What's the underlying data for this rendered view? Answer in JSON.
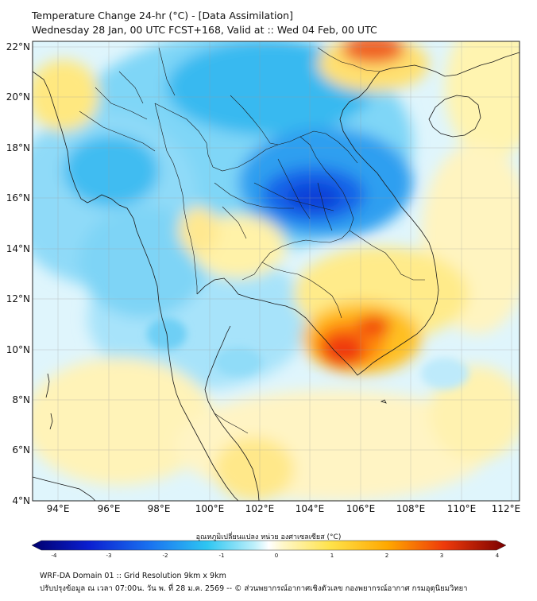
{
  "header": {
    "title": "Temperature Change 24-hr (°C) - [Data Assimilation]",
    "subtitle": "Wednesday 28 Jan, 00 UTC FCST+168, Valid at :: Wed 04 Feb, 00 UTC"
  },
  "map": {
    "lat_labels": [
      "22°N",
      "20°N",
      "18°N",
      "16°N",
      "14°N",
      "12°N",
      "10°N",
      "8°N",
      "6°N",
      "4°N"
    ],
    "lon_labels": [
      "94°E",
      "96°E",
      "98°E",
      "100°E",
      "102°E",
      "104°E",
      "106°E",
      "108°E",
      "110°E",
      "112°E"
    ],
    "lat_range": [
      4,
      22.3
    ],
    "lon_range": [
      93,
      112.3
    ]
  },
  "colorbar": {
    "label": "อุณหภูมิเปลี่ยนแปลง หน่วย องศาเซลเซียส (°C)",
    "ticks": [
      "-4",
      "-3",
      "-2",
      "-1",
      "0",
      "1",
      "2",
      "3",
      "4"
    ],
    "range": [
      -4,
      4
    ]
  },
  "footer": {
    "line1": "WRF-DA Domain 01 :: Grid Resolution 9km x 9km",
    "line2": "ปรับปรุงข้อมูล ณ เวลา 07:00น. วัน พ. ที่ 28 ม.ค. 2569 -- © ส่วนพยากรณ์อากาศเชิงตัวเลข กองพยากรณ์อากาศ กรมอุตุนิยมวิทยา"
  },
  "colors": {
    "cold_strong": "#0a3fd8",
    "cold": "#2bb8f0",
    "cold_light": "#a9e6fb",
    "neutral": "#ffffff",
    "warm_light": "#fff0a0",
    "warm": "#ffc020",
    "hot": "#e81a0a"
  }
}
